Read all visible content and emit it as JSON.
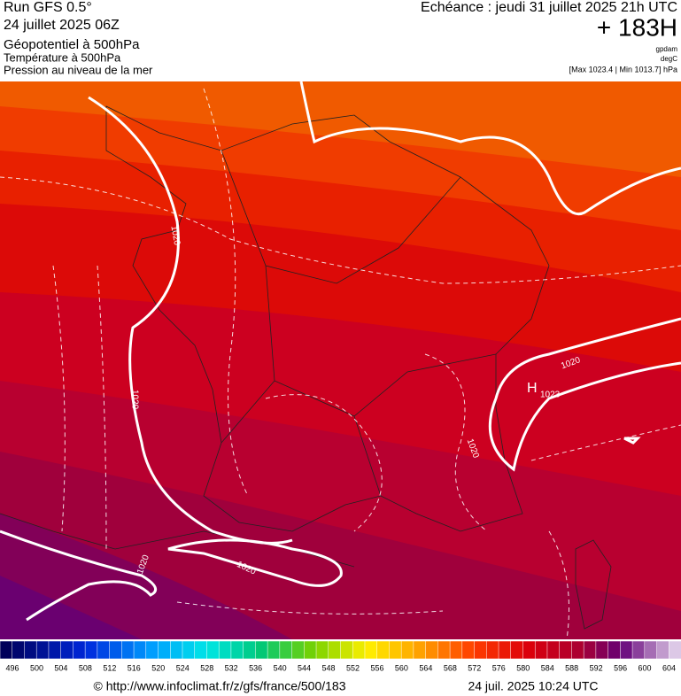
{
  "header": {
    "run": "Run GFS 0.5°",
    "date": "24 juillet 2025 06Z",
    "field1": "Géopotentiel à 500hPa",
    "field2": "Température à 500hPa",
    "field3": "Pression au niveau de la mer",
    "echeance": "Echéance : jeudi 31 juillet 2025 21h UTC",
    "lead": "+ 183H",
    "unit1": "gpdam",
    "unit2": "degC",
    "range": "[Max 1023.4 | Min 1013.7] hPa"
  },
  "map": {
    "labels": [
      "1020",
      "1020",
      "1020",
      "1020",
      "1020",
      "1020"
    ],
    "high": "H",
    "high_value": "1023"
  },
  "colorbar": {
    "labels": [
      496,
      500,
      504,
      508,
      512,
      516,
      520,
      524,
      528,
      532,
      536,
      540,
      544,
      548,
      552,
      556,
      560,
      564,
      568,
      572,
      576,
      580,
      584,
      588,
      592,
      596,
      600,
      604
    ]
  },
  "footer": {
    "url": "© http://www.infoclimat.fr/z/gfs/france/500/183",
    "timestamp": "24 juil. 2025 10:24 UTC"
  }
}
